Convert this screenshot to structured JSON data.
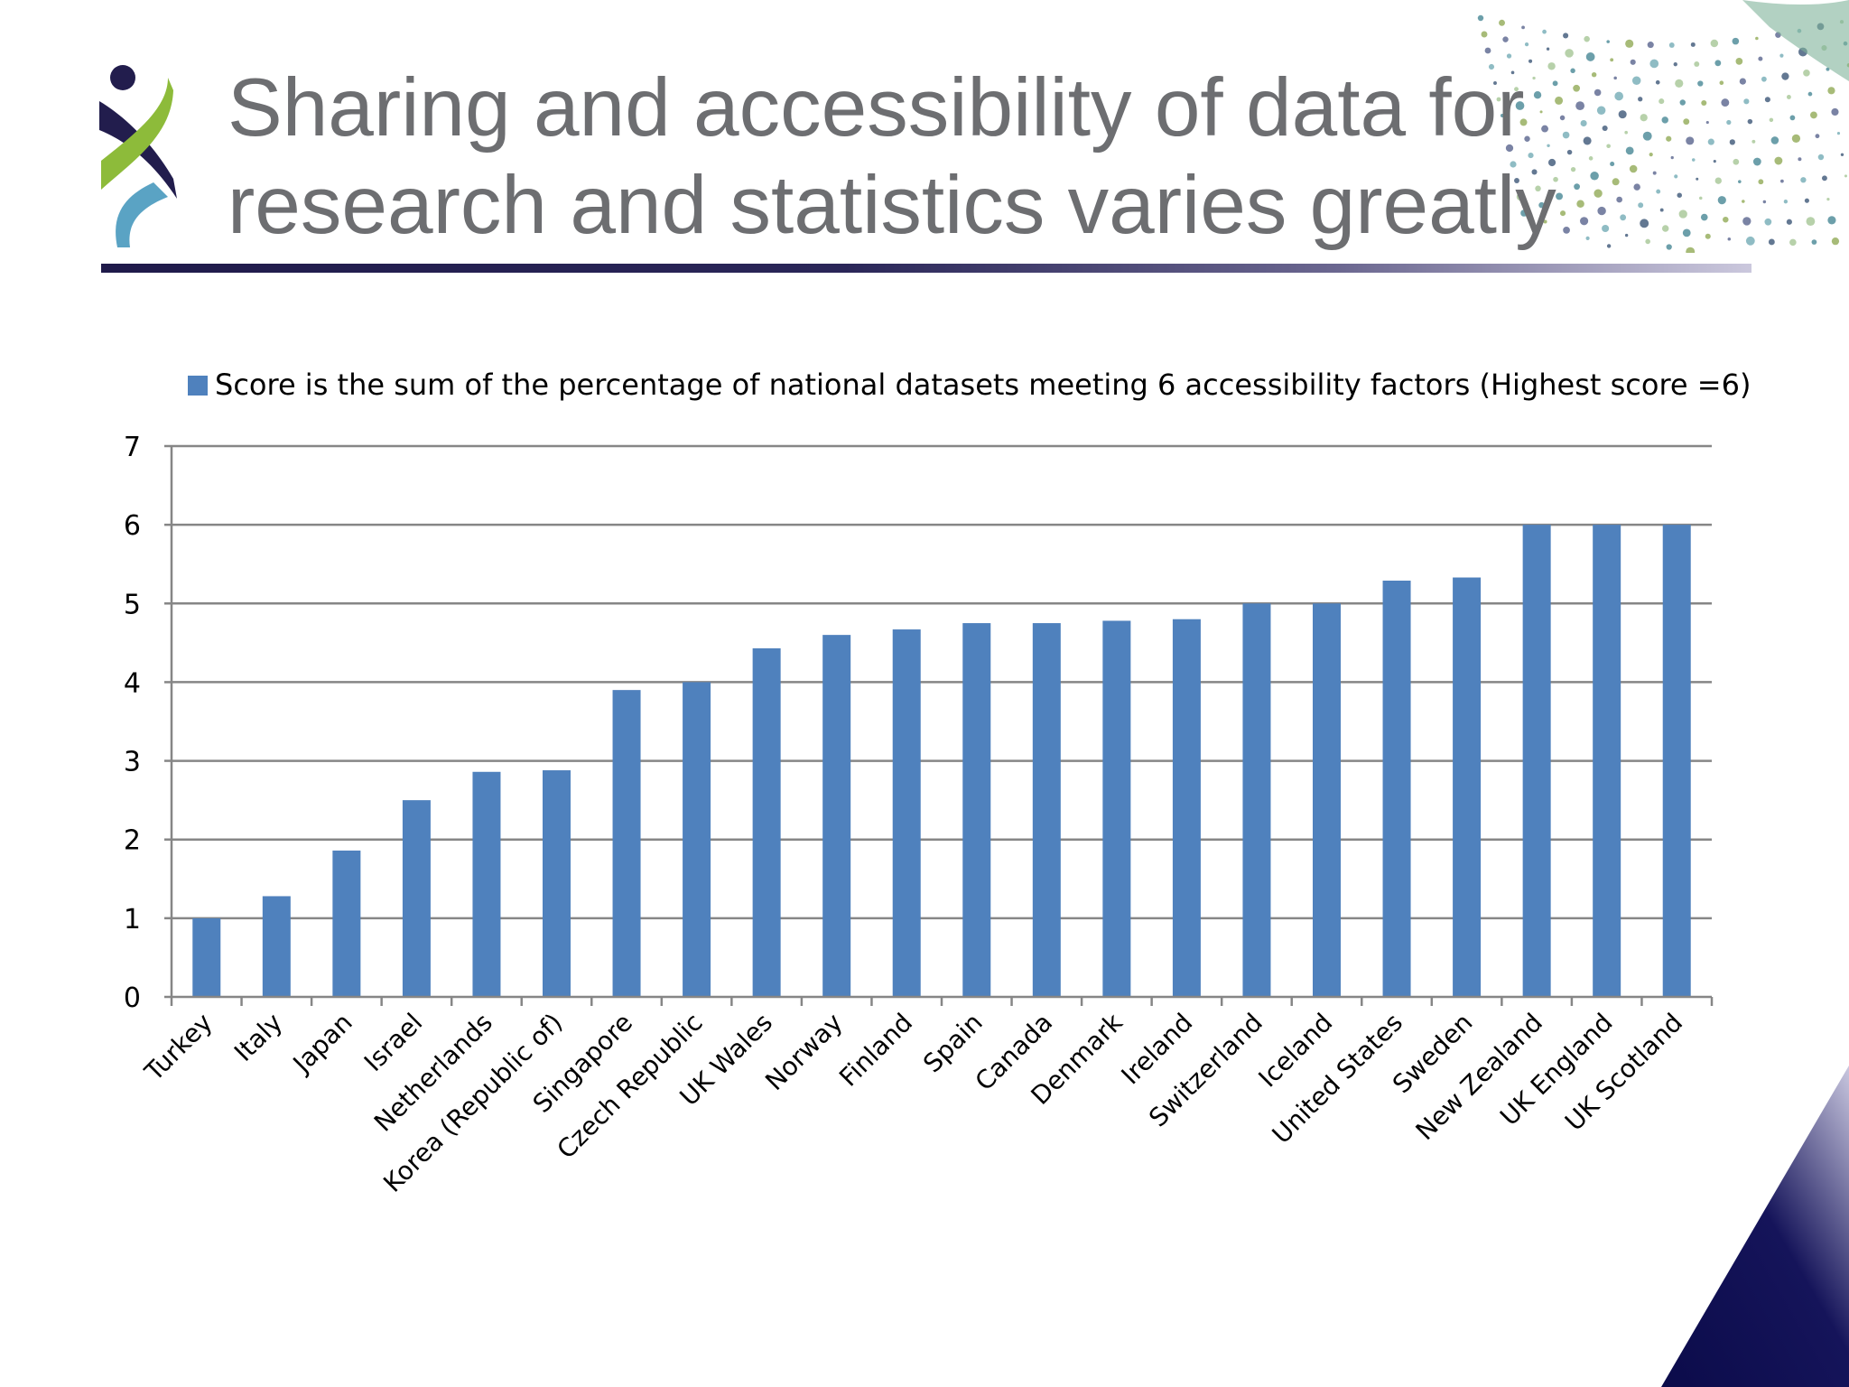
{
  "slide": {
    "title_lines": [
      "Sharing and accessibility of data for",
      "research and statistics varies greatly"
    ]
  },
  "colors": {
    "title": "#6d6e71",
    "bar": "#4f81bd",
    "gridline": "#868686",
    "rule_dark": "#1f1a4a",
    "corner": "#0b0b4a"
  },
  "chart_data": {
    "type": "bar",
    "categories": [
      "Turkey",
      "Italy",
      "Japan",
      "Israel",
      "Netherlands",
      "Korea (Republic of)",
      "Singapore",
      "Czech Republic",
      "UK Wales",
      "Norway",
      "Finland",
      "Spain",
      "Canada",
      "Denmark",
      "Ireland",
      "Switzerland",
      "Iceland",
      "United States",
      "Sweden",
      "New Zealand",
      "UK England",
      "UK Scotland"
    ],
    "series": [
      {
        "name": "Score is the sum of the percentage of national datasets meeting 6 accessibility factors (Highest score =6)",
        "values": [
          1.0,
          1.28,
          1.86,
          2.5,
          2.86,
          2.88,
          3.9,
          4.0,
          4.43,
          4.6,
          4.67,
          4.75,
          4.75,
          4.78,
          4.8,
          5.0,
          5.0,
          5.29,
          5.33,
          6.0,
          6.0,
          6.0
        ]
      }
    ],
    "ylim": [
      0,
      7
    ],
    "yticks": [
      0,
      1,
      2,
      3,
      4,
      5,
      6,
      7
    ],
    "grid": true,
    "legend_position": "top"
  }
}
